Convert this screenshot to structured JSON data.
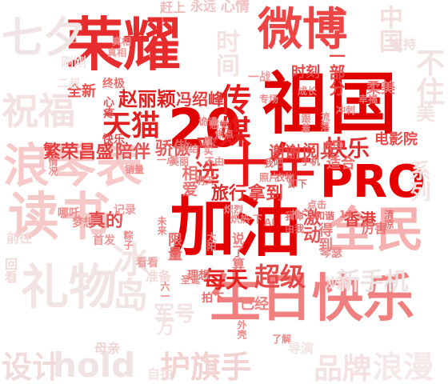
{
  "words": [
    {
      "text": "荣耀",
      "tier": "big",
      "color": "#e62c2c"
    },
    {
      "text": "微博",
      "tier": "big",
      "color": "#ee4444"
    },
    {
      "text": "祖国",
      "tier": "big",
      "color": "#e10000"
    },
    {
      "text": "20",
      "tier": "big",
      "color": "#e10000"
    },
    {
      "text": "十年",
      "tier": "big",
      "color": "#e61616"
    },
    {
      "text": "PRO",
      "tier": "big",
      "color": "#e60000"
    },
    {
      "text": "加油",
      "tier": "big",
      "color": "#e40000"
    },
    {
      "text": "全民",
      "tier": "big",
      "color": "#f6b0b0"
    },
    {
      "text": "生日快乐",
      "tier": "big",
      "color": "#f08080"
    },
    {
      "text": "读书",
      "tier": "big",
      "color": "#f6c9c9"
    },
    {
      "text": "浪琴表",
      "tier": "big",
      "color": "#f7c9c9"
    },
    {
      "text": "礼物",
      "tier": "big",
      "color": "#f3e4e4"
    },
    {
      "text": "设计",
      "tier": "mid",
      "color": "#f1dada"
    },
    {
      "text": "hold",
      "tier": "mid",
      "color": "#efe3e3"
    },
    {
      "text": "护旗手",
      "tier": "mid",
      "color": "#f3d2d2"
    },
    {
      "text": "品牌",
      "tier": "mid",
      "color": "#f4e2e2"
    },
    {
      "text": "浪漫",
      "tier": "mid",
      "color": "#f4e8e8"
    },
    {
      "text": "新手机",
      "tier": "mid",
      "color": "#eee3e3"
    },
    {
      "text": "冰岛",
      "tier": "mid",
      "color": "#f3e4e4"
    },
    {
      "text": "祝福",
      "tier": "mid",
      "color": "#f4e2e2"
    },
    {
      "text": "七夕",
      "tier": "mid",
      "color": "#f1e4e4"
    },
    {
      "text": "天猫",
      "tier": "mid",
      "color": "#e02222"
    },
    {
      "text": "传媒",
      "tier": "mid",
      "color": "#e51a1a"
    },
    {
      "text": "赵丽颖",
      "tier": "mid",
      "color": "#e01f1f"
    },
    {
      "text": "冯绍峰",
      "tier": "small",
      "color": "#e23c3c"
    },
    {
      "text": "每天",
      "tier": "mid",
      "color": "#e61f1f"
    },
    {
      "text": "超级",
      "tier": "mid",
      "color": "#e64848"
    },
    {
      "text": "严选",
      "tier": "mid",
      "color": "#e43a3a"
    },
    {
      "text": "快乐",
      "tier": "mid",
      "color": "#e02e2e"
    },
    {
      "text": "谢谢",
      "tier": "small",
      "color": "#e84a4a"
    },
    {
      "text": "阅兵",
      "tier": "small",
      "color": "#e44545"
    },
    {
      "text": "旅行",
      "tier": "small",
      "color": "#e22a2a"
    },
    {
      "text": "拿到",
      "tier": "small",
      "color": "#e44444"
    },
    {
      "text": "香港",
      "tier": "small",
      "color": "#e23d3d"
    },
    {
      "text": "激动",
      "tier": "small",
      "color": "#e84e4e"
    },
    {
      "text": "繁荣昌盛",
      "tier": "small",
      "color": "#e63c3c"
    },
    {
      "text": "陪伴",
      "tier": "small",
      "color": "#e85151"
    },
    {
      "text": "骄傲",
      "tier": "small",
      "color": "#e55d5d"
    },
    {
      "text": "真的",
      "tier": "small",
      "color": "#e64a4a"
    },
    {
      "text": "相爱",
      "tier": "small",
      "color": "#e77272"
    },
    {
      "text": "电影院",
      "tier": "small",
      "color": "#e94b4b"
    },
    {
      "text": "已经",
      "tier": "small",
      "color": "#ee8080"
    },
    {
      "text": "适合",
      "tier": "small",
      "color": "#ef6e6e"
    },
    {
      "text": "时刻",
      "tier": "small",
      "color": "#e94747"
    },
    {
      "text": "一部分",
      "tier": "small",
      "color": "#e84a4a"
    },
    {
      "text": "柔美",
      "tier": "small",
      "color": "#ec7575"
    },
    {
      "text": "全新",
      "tier": "small",
      "color": "#e85050"
    },
    {
      "text": "终极",
      "tier": "small",
      "color": "#ec6e6e"
    },
    {
      "text": "心疼",
      "tier": "small",
      "color": "#eb5757"
    },
    {
      "text": "快乐",
      "tier": "small",
      "color": "#e05252"
    },
    {
      "text": "首发",
      "tier": "small",
      "color": "#ed9494"
    },
    {
      "text": "看看",
      "tier": "small",
      "color": "#ee9d9d"
    },
    {
      "text": "限量",
      "tier": "small",
      "color": "#e96a6a"
    },
    {
      "text": "说了算",
      "tier": "small",
      "color": "#ec7a7a"
    },
    {
      "text": "拍下",
      "tier": "small",
      "color": "#e96a6a"
    },
    {
      "text": "理想",
      "tier": "small",
      "color": "#ea7272"
    },
    {
      "text": "哪吒",
      "tier": "small",
      "color": "#ee8a8a"
    },
    {
      "text": "梦想",
      "tier": "small",
      "color": "#ee8a8a"
    },
    {
      "text": "记录",
      "tier": "small",
      "color": "#ef9a9a"
    },
    {
      "text": "厉害",
      "tier": "small",
      "color": "#e97070"
    },
    {
      "text": "得到",
      "tier": "small",
      "color": "#ec7c7c"
    },
    {
      "text": "琴瑟",
      "tier": "small",
      "color": "#ec8a8a"
    },
    {
      "text": "一战",
      "tier": "small",
      "color": "#ee9a9a"
    },
    {
      "text": "赶上",
      "tier": "small",
      "color": "#eeb8b8"
    },
    {
      "text": "永远",
      "tier": "small",
      "color": "#f0c4c4"
    },
    {
      "text": "心情",
      "tier": "small",
      "color": "#f0c4c4"
    },
    {
      "text": "中国",
      "tier": "small",
      "color": "#f3dede"
    },
    {
      "text": "时间",
      "tier": "small",
      "color": "#f3e2e2"
    },
    {
      "text": "支持",
      "tier": "small",
      "color": "#f1dcdc"
    },
    {
      "text": "刚刚",
      "tier": "small",
      "color": "#f3e6e6"
    },
    {
      "text": "二叔",
      "tier": "small",
      "color": "#f3e2e2"
    },
    {
      "text": "幸福",
      "tier": "small",
      "color": "#ee7e7e"
    },
    {
      "text": "真相",
      "tier": "small",
      "color": "#ee9a9a"
    },
    {
      "text": "前往",
      "tier": "small",
      "color": "#f3dada"
    },
    {
      "text": "回看",
      "tier": "small",
      "color": "#f3dada"
    },
    {
      "text": "准备",
      "tier": "small",
      "color": "#f3dada"
    },
    {
      "text": "沙滩",
      "tier": "small",
      "color": "#f3dada"
    },
    {
      "text": "母亲",
      "tier": "small",
      "color": "#f1d4d4"
    },
    {
      "text": "自拍",
      "tier": "small",
      "color": "#f3e2e2"
    },
    {
      "text": "导演",
      "tier": "small",
      "color": "#f3e2e2"
    },
    {
      "text": "系列",
      "tier": "small",
      "color": "#f3e2e2"
    },
    {
      "text": "不住",
      "tier": "small",
      "color": "#f3e2e2"
    },
    {
      "text": "美",
      "tier": "small",
      "color": "#f3e2e2"
    },
    {
      "text": "万",
      "tier": "small",
      "color": "#f3e2e2"
    },
    {
      "text": "军号",
      "tier": "small",
      "color": "#f3e2e2"
    },
    {
      "text": "AI",
      "tier": "tiny",
      "color": "#ee8888"
    },
    {
      "text": "14",
      "tier": "tiny",
      "color": "#ee7070"
    },
    {
      "text": "我命",
      "tier": "tiny",
      "color": "#e86a6a"
    },
    {
      "text": "由我",
      "tier": "tiny",
      "color": "#e86a6a"
    },
    {
      "text": "和谐",
      "tier": "tiny",
      "color": "#e86a6a"
    },
    {
      "text": "清凉",
      "tier": "tiny",
      "color": "#e86a6a"
    },
    {
      "text": "古田",
      "tier": "tiny",
      "color": "#e86a6a"
    },
    {
      "text": "手机",
      "tier": "tiny",
      "color": "#e86a6a"
    },
    {
      "text": "卸下",
      "tier": "tiny",
      "color": "#e86a6a"
    },
    {
      "text": "衣物",
      "tier": "tiny",
      "color": "#e86a6a"
    },
    {
      "text": "我吧",
      "tier": "tiny",
      "color": "#e86a6a"
    },
    {
      "text": "炽热",
      "tier": "tiny",
      "color": "#ee8888"
    },
    {
      "text": "炽烈",
      "tier": "tiny",
      "color": "#ee8888"
    },
    {
      "text": "未来",
      "tier": "tiny",
      "color": "#ee8888"
    },
    {
      "text": "粽子",
      "tier": "tiny",
      "color": "#ee8888"
    },
    {
      "text": "太阳",
      "tier": "tiny",
      "color": "#ee8888"
    },
    {
      "text": "六一",
      "tier": "tiny",
      "color": "#ee8888"
    },
    {
      "text": "一下",
      "tier": "tiny",
      "color": "#ee8888"
    },
    {
      "text": "感觉",
      "tier": "tiny",
      "color": "#ee8888"
    },
    {
      "text": "推广",
      "tier": "tiny",
      "color": "#ee8888"
    },
    {
      "text": "一点",
      "tier": "tiny",
      "color": "#ee8888"
    },
    {
      "text": "诡谲",
      "tier": "tiny",
      "color": "#ee8888"
    },
    {
      "text": "纠结",
      "tier": "tiny",
      "color": "#ee8888"
    },
    {
      "text": "属实",
      "tier": "tiny",
      "color": "#ee8888"
    },
    {
      "text": "照片",
      "tier": "tiny",
      "color": "#ee8888"
    },
    {
      "text": "不由",
      "tier": "tiny",
      "color": "#ee8888"
    },
    {
      "text": "美丽",
      "tier": "tiny",
      "color": "#ee8888"
    },
    {
      "text": "冲刺",
      "tier": "tiny",
      "color": "#ee8888"
    },
    {
      "text": "跟着",
      "tier": "tiny",
      "color": "#ee8888"
    },
    {
      "text": "流落",
      "tier": "tiny",
      "color": "#ee8888"
    },
    {
      "text": "成长",
      "tier": "tiny",
      "color": "#ee8888"
    },
    {
      "text": "点击",
      "tier": "tiny",
      "color": "#ee8888"
    },
    {
      "text": "圣诞",
      "tier": "tiny",
      "color": "#ee8888"
    },
    {
      "text": "焦点",
      "tier": "tiny",
      "color": "#ee8888"
    },
    {
      "text": "明天",
      "tier": "tiny",
      "color": "#ee8888"
    },
    {
      "text": "外壳",
      "tier": "tiny",
      "color": "#ee8888"
    },
    {
      "text": "了解",
      "tier": "tiny",
      "color": "#ee8888"
    },
    {
      "text": "销量",
      "tier": "tiny",
      "color": "#ee8888"
    },
    {
      "text": "情况",
      "tier": "tiny",
      "color": "#ee8888"
    },
    {
      "text": "专场",
      "tier": "tiny",
      "color": "#ee8888"
    },
    {
      "text": "真相",
      "tier": "tiny",
      "color": "#ee8888"
    }
  ]
}
